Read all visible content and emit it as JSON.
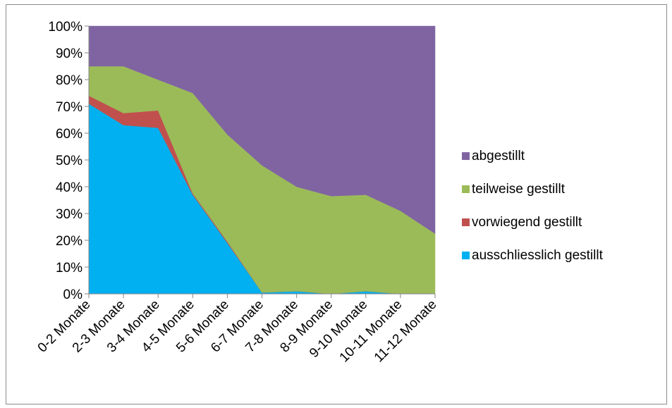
{
  "chart_data": {
    "type": "area",
    "stacked": "percent",
    "categories": [
      "0-2 Monate",
      "2-3 Monate",
      "3-4 Monate",
      "4-5 Monate",
      "5-6 Monate",
      "6-7 Monate",
      "7-8 Monate",
      "8-9 Monate",
      "9-10 Monate",
      "10-11 Monate",
      "11-12 Monate"
    ],
    "ylim": [
      0,
      100
    ],
    "y_ticks": [
      "0%",
      "10%",
      "20%",
      "30%",
      "40%",
      "50%",
      "60%",
      "70%",
      "80%",
      "90%",
      "100%"
    ],
    "grid": false,
    "legend_position": "right",
    "series": [
      {
        "name": "ausschliesslich gestillt",
        "color": "#00b0f0",
        "values": [
          71,
          63,
          62,
          37,
          19,
          0.5,
          1,
          0,
          1,
          0,
          0
        ]
      },
      {
        "name": "vorwiegend gestillt",
        "color": "#c0504d",
        "values": [
          3,
          4.5,
          6.5,
          0.5,
          0.5,
          0,
          0,
          0,
          0,
          0,
          0
        ]
      },
      {
        "name": "teilweise gestillt",
        "color": "#9bbb59",
        "values": [
          11,
          17.5,
          11.5,
          37.5,
          40,
          47.5,
          39,
          36.5,
          36,
          31,
          22.5
        ]
      },
      {
        "name": "abgestillt",
        "color": "#8064a2",
        "values": [
          15,
          15,
          20,
          25,
          40.5,
          52,
          60,
          63.5,
          63,
          69,
          77.5
        ]
      }
    ]
  },
  "legend": [
    {
      "label": "abgestillt",
      "color": "#8064a2"
    },
    {
      "label": "teilweise gestillt",
      "color": "#9bbb59"
    },
    {
      "label": "vorwiegend gestillt",
      "color": "#c0504d"
    },
    {
      "label": "ausschliesslich gestillt",
      "color": "#00b0f0"
    }
  ]
}
